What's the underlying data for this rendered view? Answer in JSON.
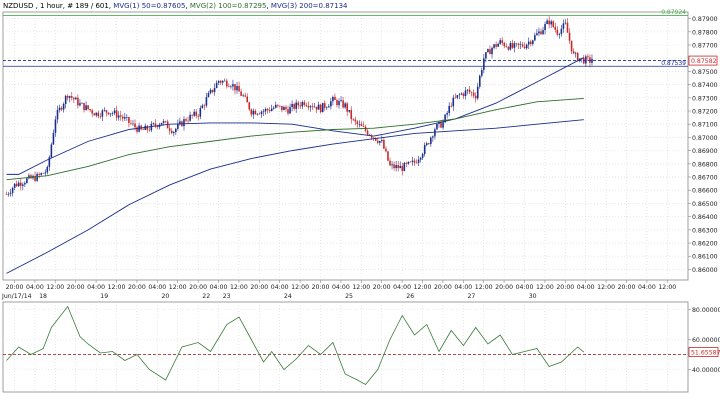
{
  "chart_data": [
    {
      "type": "candlestick",
      "title": "NZDUSD , 1 hour, # 189 / 601, MVG(1) 50=0.87605, MVG(2) 100=0.87295, MVG(3) 200=0.87134",
      "title_parts": [
        {
          "text": "NZDUSD , 1 hour, # 189 / 601, ",
          "color": "#000000"
        },
        {
          "text": "MVG(1) 50=0.87605",
          "color": "#1a2e8c"
        },
        {
          "text": ", ",
          "color": "#000000"
        },
        {
          "text": "MVG(2) 100=0.87295",
          "color": "#2d6e2d"
        },
        {
          "text": ", ",
          "color": "#000000"
        },
        {
          "text": "MVG(3) 200=0.87134",
          "color": "#1a2e8c"
        }
      ],
      "ylim": [
        0.8592,
        0.8795
      ],
      "y_ticks": [
        "0.87900",
        "0.87800",
        "0.87700",
        "0.87600",
        "0.87500",
        "0.87400",
        "0.87300",
        "0.87200",
        "0.87100",
        "0.87000",
        "0.86900",
        "0.86800",
        "0.86700",
        "0.86600",
        "0.86500",
        "0.86400",
        "0.86300",
        "0.86200",
        "0.86100",
        "0.86000"
      ],
      "x_time_labels": [
        "20:00",
        "04:00",
        "12:00",
        "20:00",
        "04:00",
        "12:00",
        "20:00",
        "04:00",
        "12:00",
        "20:00",
        "04:00",
        "12:00",
        "20:00",
        "04:00",
        "12:00",
        "20:00",
        "04:00",
        "12:00",
        "20:00",
        "04:00",
        "12:00",
        "20:00",
        "04:00",
        "12:00",
        "20:00",
        "04:00",
        "12:00",
        "20:00",
        "04:00",
        "12:00",
        "20:00",
        "04:00",
        "12:00"
      ],
      "x_date_labels": [
        {
          "label": "Jun/17/14",
          "tick": 0
        },
        {
          "label": "18",
          "tick": 1
        },
        {
          "label": "19",
          "tick": 4
        },
        {
          "label": "20",
          "tick": 7
        },
        {
          "label": "22",
          "tick": 9
        },
        {
          "label": "23",
          "tick": 10
        },
        {
          "label": "24",
          "tick": 13
        },
        {
          "label": "25",
          "tick": 16
        },
        {
          "label": "26",
          "tick": 19
        },
        {
          "label": "27",
          "tick": 22
        },
        {
          "label": "30",
          "tick": 25
        }
      ],
      "price_levels": [
        {
          "value": "0.87924",
          "color": "#4caf50",
          "style": "solid"
        },
        {
          "value": "0.87582",
          "color": "#1a2e8c",
          "style": "dashed"
        },
        {
          "value": "0.87539",
          "color": "#1a2e8c",
          "style": "solid"
        }
      ],
      "current_price_box": "0.87582",
      "hidden_value_box": "0.87700",
      "series": [
        {
          "name": "MVG(1) 50",
          "color": "#1a2e8c",
          "x": [
            0,
            6,
            20,
            40,
            60,
            80,
            100,
            120,
            140,
            160,
            180,
            200,
            220,
            240,
            260,
            283
          ],
          "values": [
            0.8672,
            0.8672,
            0.8683,
            0.8697,
            0.8706,
            0.871,
            0.8711,
            0.8711,
            0.871,
            0.8705,
            0.8701,
            0.8707,
            0.8714,
            0.8726,
            0.8742,
            0.87605
          ]
        },
        {
          "name": "MVG(2) 100",
          "color": "#2d6e2d",
          "x": [
            0,
            20,
            40,
            60,
            80,
            100,
            120,
            140,
            160,
            180,
            200,
            220,
            240,
            260,
            283
          ],
          "values": [
            0.8668,
            0.8671,
            0.8678,
            0.8687,
            0.8693,
            0.8697,
            0.8701,
            0.8704,
            0.8706,
            0.8707,
            0.871,
            0.8714,
            0.8721,
            0.8727,
            0.87295
          ]
        },
        {
          "name": "MVG(3) 200",
          "color": "#1a2e8c",
          "x": [
            0,
            20,
            40,
            60,
            80,
            100,
            120,
            140,
            160,
            180,
            200,
            220,
            240,
            260,
            283
          ],
          "values": [
            0.8597,
            0.8613,
            0.863,
            0.8649,
            0.8664,
            0.8676,
            0.8684,
            0.869,
            0.8695,
            0.8699,
            0.8703,
            0.8705,
            0.8707,
            0.871,
            0.87134
          ]
        }
      ],
      "grid": true,
      "up_color": "#1a2e8c",
      "down_color": "#c62828"
    },
    {
      "type": "line",
      "title": "RSI(1) 14=51.65587",
      "ylim": [
        25,
        85
      ],
      "y_ticks": [
        "80.00000",
        "60.00000",
        "40.00000"
      ],
      "reference_line": 50,
      "current_value_box": "51.65587",
      "series": [
        {
          "name": "RSI(1) 14",
          "color": "#3a7a3a",
          "x": [
            0,
            6,
            12,
            18,
            22,
            30,
            36,
            40,
            46,
            52,
            58,
            64,
            70,
            78,
            86,
            94,
            100,
            108,
            114,
            120,
            126,
            130,
            136,
            142,
            148,
            154,
            160,
            166,
            172,
            176,
            182,
            188,
            194,
            200,
            206,
            212,
            218,
            224,
            230,
            236,
            242,
            248,
            254,
            260,
            266,
            272,
            276,
            280,
            283
          ],
          "values": [
            46,
            55,
            50,
            54,
            68,
            82,
            62,
            57,
            51,
            52,
            46,
            50,
            40,
            33,
            55,
            58,
            52,
            70,
            75,
            60,
            45,
            52,
            40,
            47,
            56,
            50,
            58,
            37,
            33,
            30,
            40,
            60,
            76,
            63,
            70,
            52,
            66,
            56,
            68,
            57,
            63,
            50,
            52,
            54,
            42,
            45,
            50,
            55,
            51.66
          ]
        }
      ]
    }
  ]
}
